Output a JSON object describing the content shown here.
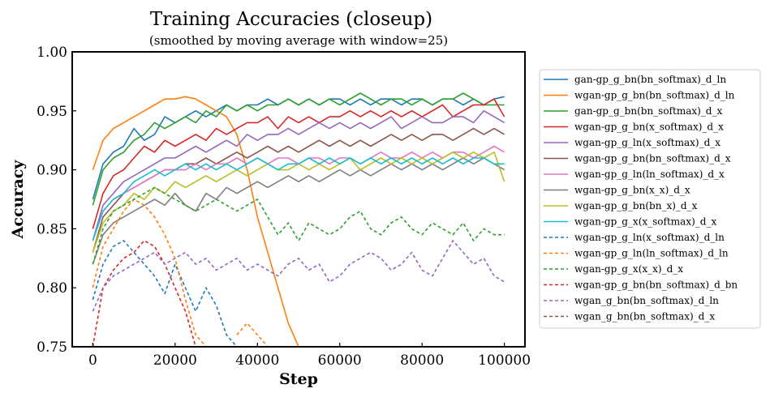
{
  "chart_data": {
    "type": "line",
    "title": "Training Accuracies (closeup)",
    "subtitle": "(smoothed by moving average with window=25)",
    "xlabel": "Step",
    "ylabel": "Accuracy",
    "xlim": [
      -5000,
      105000
    ],
    "ylim": [
      0.75,
      1.0
    ],
    "xticks": [
      0,
      20000,
      40000,
      60000,
      80000,
      100000
    ],
    "xtick_labels": [
      "0",
      "20000",
      "40000",
      "60000",
      "80000",
      "100000"
    ],
    "yticks": [
      0.75,
      0.8,
      0.85,
      0.9,
      0.95,
      1.0
    ],
    "ytick_labels": [
      "0.75",
      "0.80",
      "0.85",
      "0.90",
      "0.95",
      "1.00"
    ],
    "grid": false,
    "legend_position": "outside-right",
    "x": [
      0,
      2500,
      5000,
      7500,
      10000,
      12500,
      15000,
      17500,
      20000,
      22500,
      25000,
      27500,
      30000,
      32500,
      35000,
      37500,
      40000,
      42500,
      45000,
      47500,
      50000,
      52500,
      55000,
      57500,
      60000,
      62500,
      65000,
      67500,
      70000,
      72500,
      75000,
      77500,
      80000,
      82500,
      85000,
      87500,
      90000,
      92500,
      95000,
      97500,
      100000
    ],
    "series": [
      {
        "name": "gan-gp_g_bn(bn_softmax)_d_ln",
        "color": "#1f77b4",
        "style": "solid",
        "values": [
          0.875,
          0.905,
          0.915,
          0.92,
          0.935,
          0.925,
          0.93,
          0.945,
          0.94,
          0.945,
          0.95,
          0.945,
          0.95,
          0.955,
          0.95,
          0.955,
          0.955,
          0.96,
          0.955,
          0.96,
          0.955,
          0.96,
          0.955,
          0.96,
          0.96,
          0.955,
          0.96,
          0.955,
          0.96,
          0.96,
          0.955,
          0.96,
          0.96,
          0.955,
          0.96,
          0.96,
          0.955,
          0.96,
          0.955,
          0.96,
          0.962
        ]
      },
      {
        "name": "wgan-gp_g_bn(bn_softmax)_d_ln",
        "color": "#ff7f0e",
        "style": "solid",
        "values": [
          0.9,
          0.925,
          0.935,
          0.94,
          0.945,
          0.95,
          0.955,
          0.96,
          0.96,
          0.962,
          0.96,
          0.955,
          0.95,
          0.945,
          0.93,
          0.9,
          0.86,
          0.83,
          0.8,
          0.77,
          0.75,
          null,
          null,
          null,
          null,
          null,
          null,
          null,
          null,
          null,
          null,
          null,
          null,
          null,
          null,
          null,
          null,
          null,
          null,
          null,
          null
        ]
      },
      {
        "name": "gan-gp_g_bn(bn_softmax)_d_x",
        "color": "#2ca02c",
        "style": "solid",
        "values": [
          0.87,
          0.9,
          0.91,
          0.915,
          0.925,
          0.93,
          0.94,
          0.935,
          0.94,
          0.945,
          0.94,
          0.95,
          0.945,
          0.955,
          0.95,
          0.955,
          0.95,
          0.955,
          0.955,
          0.96,
          0.955,
          0.96,
          0.955,
          0.96,
          0.955,
          0.96,
          0.965,
          0.96,
          0.955,
          0.96,
          0.96,
          0.955,
          0.96,
          0.955,
          0.96,
          0.96,
          0.965,
          0.96,
          0.955,
          0.955,
          0.955
        ]
      },
      {
        "name": "wgan-gp_g_bn(x_softmax)_d_x",
        "color": "#d62728",
        "style": "solid",
        "values": [
          0.85,
          0.88,
          0.895,
          0.9,
          0.91,
          0.92,
          0.915,
          0.925,
          0.92,
          0.925,
          0.93,
          0.925,
          0.935,
          0.93,
          0.935,
          0.94,
          0.94,
          0.945,
          0.935,
          0.945,
          0.94,
          0.945,
          0.94,
          0.945,
          0.945,
          0.95,
          0.945,
          0.95,
          0.945,
          0.95,
          0.945,
          0.95,
          0.945,
          0.95,
          0.955,
          0.945,
          0.95,
          0.955,
          0.955,
          0.96,
          0.945
        ]
      },
      {
        "name": "wgan-gp_g_ln(x_softmax)_d_x",
        "color": "#9467bd",
        "style": "solid",
        "values": [
          0.84,
          0.87,
          0.88,
          0.89,
          0.895,
          0.9,
          0.905,
          0.91,
          0.91,
          0.915,
          0.92,
          0.915,
          0.92,
          0.925,
          0.92,
          0.93,
          0.925,
          0.93,
          0.93,
          0.935,
          0.93,
          0.935,
          0.94,
          0.935,
          0.94,
          0.935,
          0.94,
          0.935,
          0.94,
          0.945,
          0.935,
          0.94,
          0.945,
          0.94,
          0.94,
          0.945,
          0.945,
          0.94,
          0.95,
          0.945,
          0.94
        ]
      },
      {
        "name": "wgan-gp_g_bn(bn_softmax)_d_x",
        "color": "#8c564b",
        "style": "solid",
        "values": [
          0.83,
          0.86,
          0.87,
          0.88,
          0.885,
          0.89,
          0.895,
          0.9,
          0.9,
          0.905,
          0.905,
          0.91,
          0.905,
          0.91,
          0.915,
          0.91,
          0.915,
          0.92,
          0.915,
          0.92,
          0.915,
          0.92,
          0.925,
          0.92,
          0.925,
          0.92,
          0.925,
          0.92,
          0.925,
          0.93,
          0.925,
          0.93,
          0.925,
          0.93,
          0.93,
          0.925,
          0.93,
          0.935,
          0.93,
          0.935,
          0.93
        ]
      },
      {
        "name": "wgan-gp_g_ln(ln_softmax)_d_x",
        "color": "#e377c2",
        "style": "solid",
        "values": [
          0.84,
          0.865,
          0.875,
          0.88,
          0.885,
          0.89,
          0.895,
          0.9,
          0.9,
          0.9,
          0.905,
          0.9,
          0.905,
          0.905,
          0.91,
          0.905,
          0.91,
          0.905,
          0.91,
          0.91,
          0.905,
          0.91,
          0.91,
          0.905,
          0.91,
          0.91,
          0.905,
          0.91,
          0.915,
          0.91,
          0.91,
          0.915,
          0.91,
          0.915,
          0.91,
          0.915,
          0.915,
          0.91,
          0.915,
          0.92,
          0.915
        ]
      },
      {
        "name": "wgan-gp_g_bn(x_x)_d_x",
        "color": "#7f7f7f",
        "style": "solid",
        "values": [
          0.82,
          0.845,
          0.855,
          0.86,
          0.865,
          0.87,
          0.875,
          0.87,
          0.88,
          0.87,
          0.865,
          0.88,
          0.875,
          0.885,
          0.88,
          0.885,
          0.89,
          0.885,
          0.89,
          0.895,
          0.89,
          0.895,
          0.89,
          0.895,
          0.9,
          0.895,
          0.9,
          0.895,
          0.9,
          0.905,
          0.9,
          0.905,
          0.9,
          0.905,
          0.9,
          0.905,
          0.91,
          0.905,
          0.91,
          0.905,
          0.9
        ]
      },
      {
        "name": "wgan-gp_g_bn(bn_x)_d_x",
        "color": "#bcbd22",
        "style": "solid",
        "values": [
          0.83,
          0.855,
          0.865,
          0.87,
          0.88,
          0.875,
          0.885,
          0.88,
          0.89,
          0.885,
          0.89,
          0.895,
          0.89,
          0.895,
          0.9,
          0.895,
          0.9,
          0.905,
          0.9,
          0.9,
          0.905,
          0.9,
          0.905,
          0.9,
          0.905,
          0.91,
          0.9,
          0.905,
          0.91,
          0.905,
          0.91,
          0.905,
          0.91,
          0.905,
          0.91,
          0.915,
          0.91,
          0.915,
          0.91,
          0.915,
          0.89
        ]
      },
      {
        "name": "wgan-gp_g_x(x_softmax)_d_x",
        "color": "#17becf",
        "style": "solid",
        "values": [
          0.84,
          0.865,
          0.875,
          0.88,
          0.89,
          0.895,
          0.9,
          0.895,
          0.9,
          0.905,
          0.9,
          0.905,
          0.9,
          0.905,
          0.9,
          0.905,
          0.91,
          0.905,
          0.9,
          0.905,
          0.905,
          0.91,
          0.905,
          0.91,
          0.905,
          0.91,
          0.905,
          0.91,
          0.905,
          0.91,
          0.905,
          0.91,
          0.905,
          0.91,
          0.905,
          0.91,
          0.905,
          0.91,
          0.91,
          0.905,
          0.905
        ]
      },
      {
        "name": "wgan-gp_g_ln(x_softmax)_d_ln",
        "color": "#1f77b4",
        "style": "dashed",
        "values": [
          0.79,
          0.82,
          0.835,
          0.84,
          0.83,
          0.82,
          0.81,
          0.795,
          0.82,
          0.8,
          0.78,
          0.8,
          0.785,
          0.76,
          0.75,
          null,
          null,
          null,
          null,
          null,
          null,
          null,
          null,
          null,
          null,
          null,
          null,
          null,
          null,
          null,
          null,
          null,
          null,
          null,
          null,
          null,
          null,
          null,
          null,
          null,
          null
        ]
      },
      {
        "name": "wgan-gp_g_ln(ln_softmax)_d_ln",
        "color": "#ff7f0e",
        "style": "dashed",
        "values": [
          0.8,
          0.835,
          0.85,
          0.865,
          0.875,
          0.87,
          0.86,
          0.845,
          0.825,
          0.79,
          0.76,
          0.75,
          null,
          null,
          0.76,
          0.77,
          0.76,
          0.75,
          null,
          null,
          null,
          null,
          null,
          null,
          null,
          null,
          null,
          null,
          null,
          null,
          null,
          null,
          null,
          null,
          null,
          null,
          null,
          null,
          null,
          null,
          null
        ]
      },
      {
        "name": "wgan-gp_g_x(x_x)_d_x",
        "color": "#2ca02c",
        "style": "dashed",
        "values": [
          0.82,
          0.85,
          0.865,
          0.87,
          0.875,
          0.88,
          0.885,
          0.88,
          0.875,
          0.87,
          0.865,
          0.87,
          0.875,
          0.87,
          0.865,
          0.87,
          0.875,
          0.86,
          0.845,
          0.855,
          0.84,
          0.855,
          0.85,
          0.845,
          0.85,
          0.86,
          0.865,
          0.85,
          0.845,
          0.855,
          0.86,
          0.85,
          0.845,
          0.855,
          0.85,
          0.845,
          0.855,
          0.84,
          0.85,
          0.845,
          0.845
        ]
      },
      {
        "name": "wgan-gp_g_bn(bn_softmax)_d_bn",
        "color": "#d62728",
        "style": "dashed",
        "values": [
          0.75,
          0.8,
          0.815,
          0.825,
          0.83,
          0.84,
          0.835,
          0.82,
          0.8,
          0.78,
          0.75,
          null,
          null,
          null,
          null,
          null,
          null,
          null,
          null,
          null,
          null,
          null,
          null,
          null,
          null,
          null,
          null,
          null,
          null,
          null,
          null,
          null,
          null,
          null,
          null,
          null,
          null,
          null,
          null,
          null,
          null
        ]
      },
      {
        "name": "wgan_g_bn(bn_softmax)_d_ln",
        "color": "#9467bd",
        "style": "dashed",
        "values": [
          0.78,
          0.8,
          0.81,
          0.815,
          0.82,
          0.825,
          0.83,
          0.82,
          0.825,
          0.83,
          0.82,
          0.825,
          0.815,
          0.82,
          0.825,
          0.815,
          0.82,
          0.815,
          0.81,
          0.82,
          0.825,
          0.815,
          0.82,
          0.805,
          0.81,
          0.82,
          0.825,
          0.83,
          0.825,
          0.815,
          0.82,
          0.83,
          0.815,
          0.81,
          0.825,
          0.84,
          0.83,
          0.82,
          0.825,
          0.81,
          0.805
        ]
      },
      {
        "name": "wgan_g_bn(bn_softmax)_d_x",
        "color": "#8c564b",
        "style": "dashed",
        "values": [
          null,
          null,
          null,
          null,
          null,
          null,
          null,
          null,
          null,
          null,
          null,
          null,
          null,
          null,
          null,
          null,
          null,
          null,
          null,
          null,
          null,
          null,
          null,
          null,
          null,
          null,
          null,
          null,
          null,
          null,
          null,
          null,
          null,
          null,
          null,
          null,
          null,
          null,
          null,
          null,
          null
        ]
      }
    ]
  }
}
